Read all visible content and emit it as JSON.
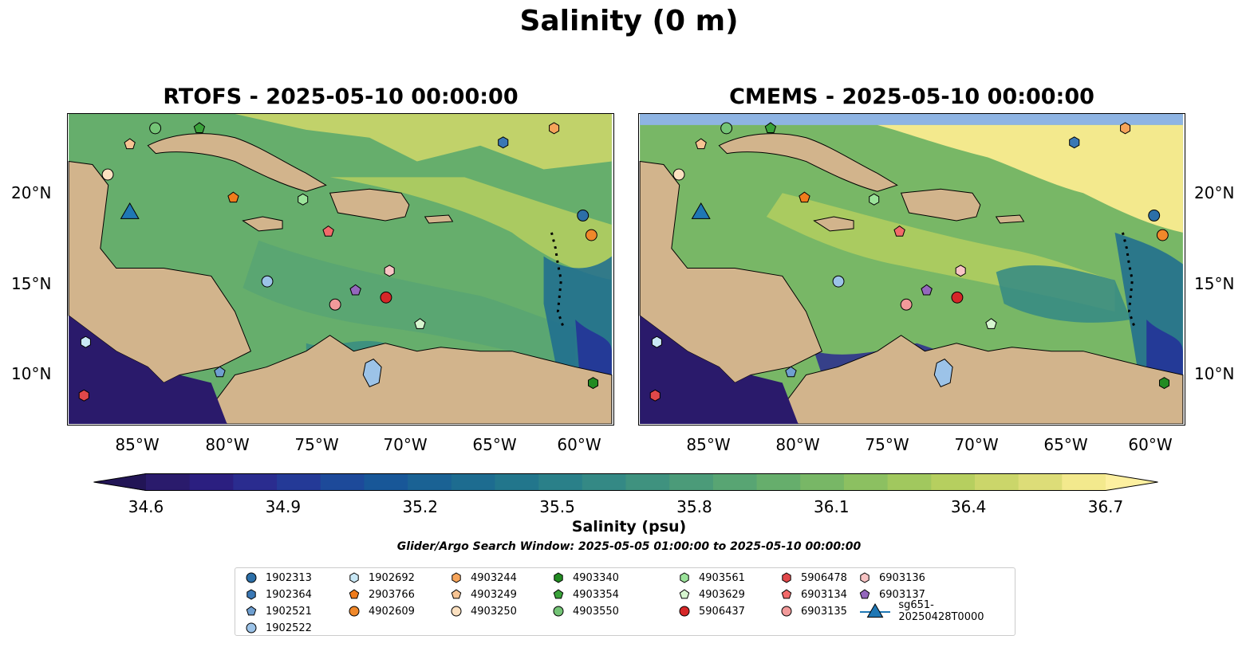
{
  "title": "Salinity (0 m)",
  "panels": [
    {
      "id": "rtofs",
      "title": "RTOFS - 2025-05-10 00:00:00"
    },
    {
      "id": "cmems",
      "title": "CMEMS - 2025-05-10 00:00:00"
    }
  ],
  "map": {
    "lon_range": [
      -89.5,
      -57.5
    ],
    "lat_range": [
      7.0,
      24.4
    ],
    "lon_ticks": [
      "85°W",
      "80°W",
      "75°W",
      "70°W",
      "65°W",
      "60°W"
    ],
    "lat_ticks": [
      "20°N",
      "15°N",
      "10°N"
    ],
    "land_color": "#d2b48c",
    "deep_ocean_color": "#2a1a6b"
  },
  "colorbar": {
    "label": "Salinity (psu)",
    "min": 34.6,
    "max": 36.7,
    "tick_labels": [
      "34.6",
      "34.9",
      "35.2",
      "35.5",
      "35.8",
      "36.1",
      "36.4",
      "36.7"
    ],
    "colors": [
      "#2a1b6c",
      "#2b1f80",
      "#2a2c8f",
      "#243a97",
      "#1d4a9a",
      "#185798",
      "#1a6294",
      "#1d6c90",
      "#22768c",
      "#2a8089",
      "#348985",
      "#3f927f",
      "#4b9b79",
      "#58a573",
      "#66ae6c",
      "#78b766",
      "#8cc061",
      "#a1c85e",
      "#b6cf5f",
      "#cbd66a",
      "#dddd78",
      "#f3e98d"
    ],
    "extend_low_color": "#221556",
    "extend_high_color": "#fdf0a0"
  },
  "search_window": "Glider/Argo Search Window: 2025-05-05 01:00:00 to 2025-05-10 00:00:00",
  "legend": [
    {
      "label": "1902313",
      "marker": "circle",
      "color": "#2c6fa8"
    },
    {
      "label": "1902364",
      "marker": "hexagon",
      "color": "#3a78b5"
    },
    {
      "label": "1902521",
      "marker": "pentagon",
      "color": "#6f9fd0"
    },
    {
      "label": "1902522",
      "marker": "circle",
      "color": "#9cc3e8"
    },
    {
      "label": "1902692",
      "marker": "hexagon",
      "color": "#c9e8f6"
    },
    {
      "label": "2903766",
      "marker": "pentagon",
      "color": "#f07c1c"
    },
    {
      "label": "4902609",
      "marker": "circle",
      "color": "#f0882a"
    },
    {
      "label": "4903244",
      "marker": "hexagon",
      "color": "#f6a45a"
    },
    {
      "label": "4903249",
      "marker": "pentagon",
      "color": "#f7c493"
    },
    {
      "label": "4903250",
      "marker": "circle",
      "color": "#fbe0c0"
    },
    {
      "label": "4903340",
      "marker": "hexagon",
      "color": "#228b22"
    },
    {
      "label": "4903354",
      "marker": "pentagon",
      "color": "#3aa23a"
    },
    {
      "label": "4903550",
      "marker": "circle",
      "color": "#74c476"
    },
    {
      "label": "4903561",
      "marker": "hexagon",
      "color": "#9be39a"
    },
    {
      "label": "4903629",
      "marker": "pentagon",
      "color": "#d6f5cf"
    },
    {
      "label": "5906437",
      "marker": "circle",
      "color": "#d62728"
    },
    {
      "label": "5906478",
      "marker": "hexagon",
      "color": "#e0484a"
    },
    {
      "label": "6903134",
      "marker": "pentagon",
      "color": "#f26a6a"
    },
    {
      "label": "6903135",
      "marker": "circle",
      "color": "#f29a9a"
    },
    {
      "label": "6903136",
      "marker": "hexagon",
      "color": "#f8c4c4"
    },
    {
      "label": "6903137",
      "marker": "pentagon",
      "color": "#9467bd"
    },
    {
      "label": "sg651-20250428T0000",
      "marker": "triangle",
      "color": "#1f77b4"
    }
  ],
  "points": [
    {
      "id": "1902313",
      "lon": -59.2,
      "lat": 18.7
    },
    {
      "id": "1902364",
      "lon": -63.9,
      "lat": 22.8
    },
    {
      "id": "1902521",
      "lon": -80.6,
      "lat": 9.9
    },
    {
      "id": "1902522",
      "lon": -77.8,
      "lat": 15.0
    },
    {
      "id": "1902692",
      "lon": -88.5,
      "lat": 11.6
    },
    {
      "id": "2903766",
      "lon": -79.8,
      "lat": 19.7
    },
    {
      "id": "4902609",
      "lon": -58.7,
      "lat": 17.6
    },
    {
      "id": "4903244",
      "lon": -60.9,
      "lat": 23.6
    },
    {
      "id": "4903249",
      "lon": -85.9,
      "lat": 22.7
    },
    {
      "id": "4903250",
      "lon": -87.2,
      "lat": 21.0
    },
    {
      "id": "4903340",
      "lon": -58.6,
      "lat": 9.3
    },
    {
      "id": "4903354",
      "lon": -81.8,
      "lat": 23.6
    },
    {
      "id": "4903550",
      "lon": -84.4,
      "lat": 23.6
    },
    {
      "id": "4903561",
      "lon": -75.7,
      "lat": 19.6
    },
    {
      "id": "4903629",
      "lon": -68.8,
      "lat": 12.6
    },
    {
      "id": "5906437",
      "lon": -70.8,
      "lat": 14.1
    },
    {
      "id": "5906478",
      "lon": -88.6,
      "lat": 8.6
    },
    {
      "id": "6903134",
      "lon": -74.2,
      "lat": 17.8
    },
    {
      "id": "6903135",
      "lon": -73.8,
      "lat": 13.7
    },
    {
      "id": "6903136",
      "lon": -70.6,
      "lat": 15.6
    },
    {
      "id": "6903137",
      "lon": -72.6,
      "lat": 14.5
    },
    {
      "id": "sg651-20250428T0000",
      "lon": -85.9,
      "lat": 18.9
    }
  ]
}
